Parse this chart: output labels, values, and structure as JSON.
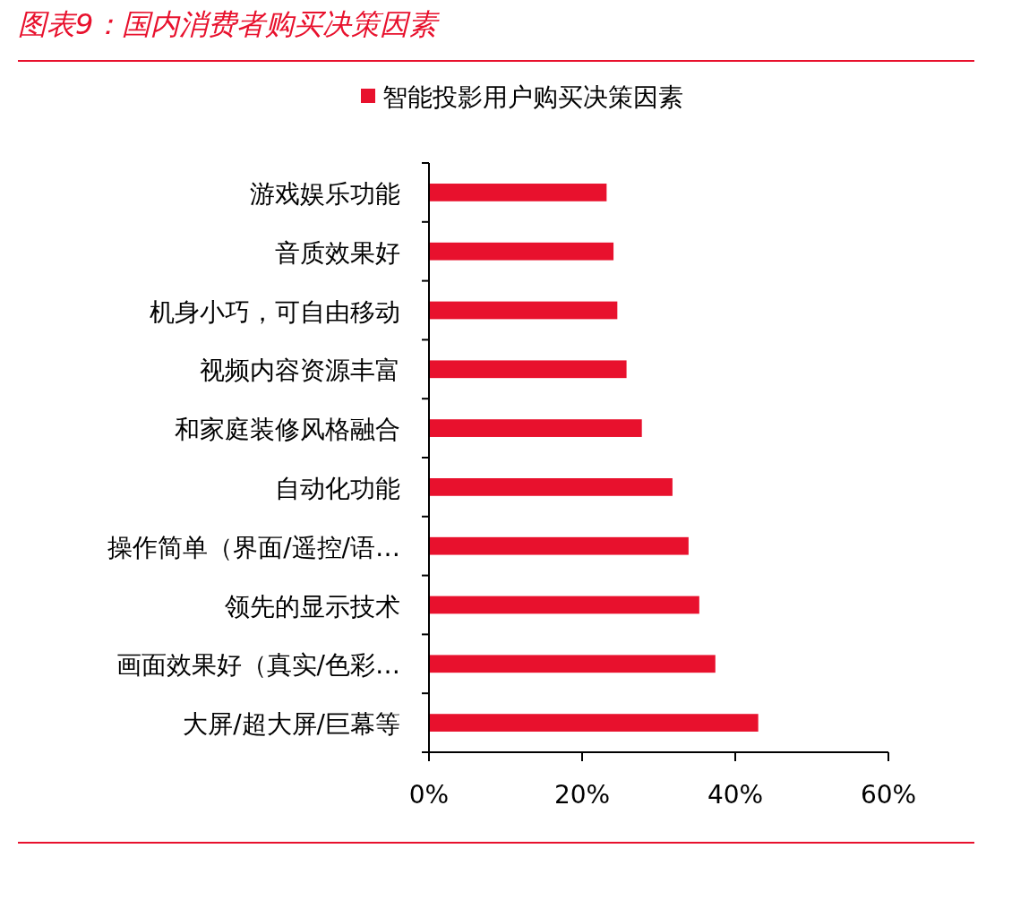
{
  "chart_data": {
    "type": "bar",
    "orientation": "horizontal",
    "title": "图表9：国内消费者购买决策因素",
    "categories": [
      "游戏娱乐功能",
      "音质效果好",
      "机身小巧，可自由移动",
      "视频内容资源丰富",
      "和家庭装修风格融合",
      "自动化功能",
      "操作简单（界面/遥控/语…",
      "领先的显示技术",
      "画面效果好（真实/色彩…",
      "大屏/超大屏/巨幕等"
    ],
    "series": [
      {
        "name": "智能投影用户购买决策因素",
        "color": "#e8112d",
        "values": [
          23.2,
          24.1,
          24.6,
          25.8,
          27.8,
          31.8,
          33.9,
          35.3,
          37.4,
          43.0
        ]
      }
    ],
    "xlim": [
      0,
      60
    ],
    "xticks": [
      {
        "value": 0,
        "label": "0%"
      },
      {
        "value": 20,
        "label": "20%"
      },
      {
        "value": 40,
        "label": "40%"
      },
      {
        "value": 60,
        "label": "60%"
      }
    ],
    "grid": false,
    "legend": "top"
  }
}
